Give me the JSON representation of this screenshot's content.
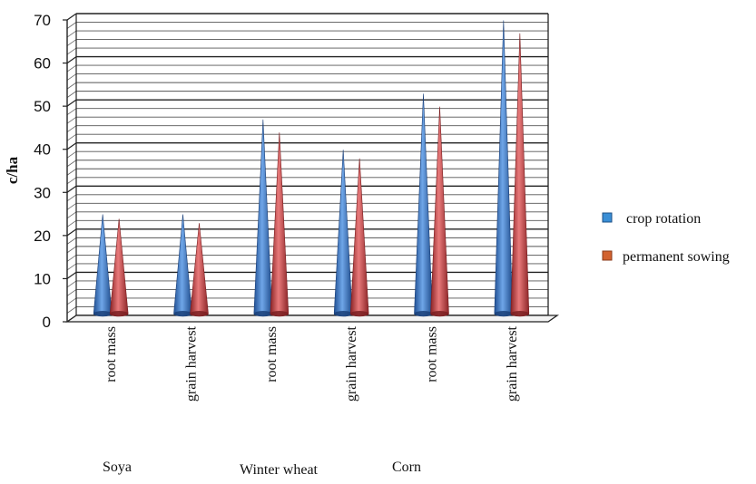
{
  "chart_data": {
    "type": "bar",
    "bar_shape": "cone",
    "ylabel": "c/ha",
    "ylim": [
      0,
      70
    ],
    "yticks": [
      0,
      10,
      20,
      30,
      40,
      50,
      60,
      70
    ],
    "grid": true,
    "categories": [
      "root mass",
      "grain harvest",
      "root mass",
      "grain harvest",
      "root mass",
      "grain harvest"
    ],
    "groups": [
      "Soya",
      "Winter wheat",
      "Corn"
    ],
    "series": [
      {
        "name": "crop rotation",
        "color": "#3b78c9",
        "values": [
          23,
          23,
          45,
          38,
          51,
          68
        ]
      },
      {
        "name": "permanent sowing",
        "color": "#c0484a",
        "values": [
          22,
          21,
          42,
          36,
          48,
          65
        ]
      }
    ],
    "legend": {
      "position": "right",
      "swatch_colors": [
        "#3a8fd6",
        "#d2622f"
      ]
    }
  }
}
